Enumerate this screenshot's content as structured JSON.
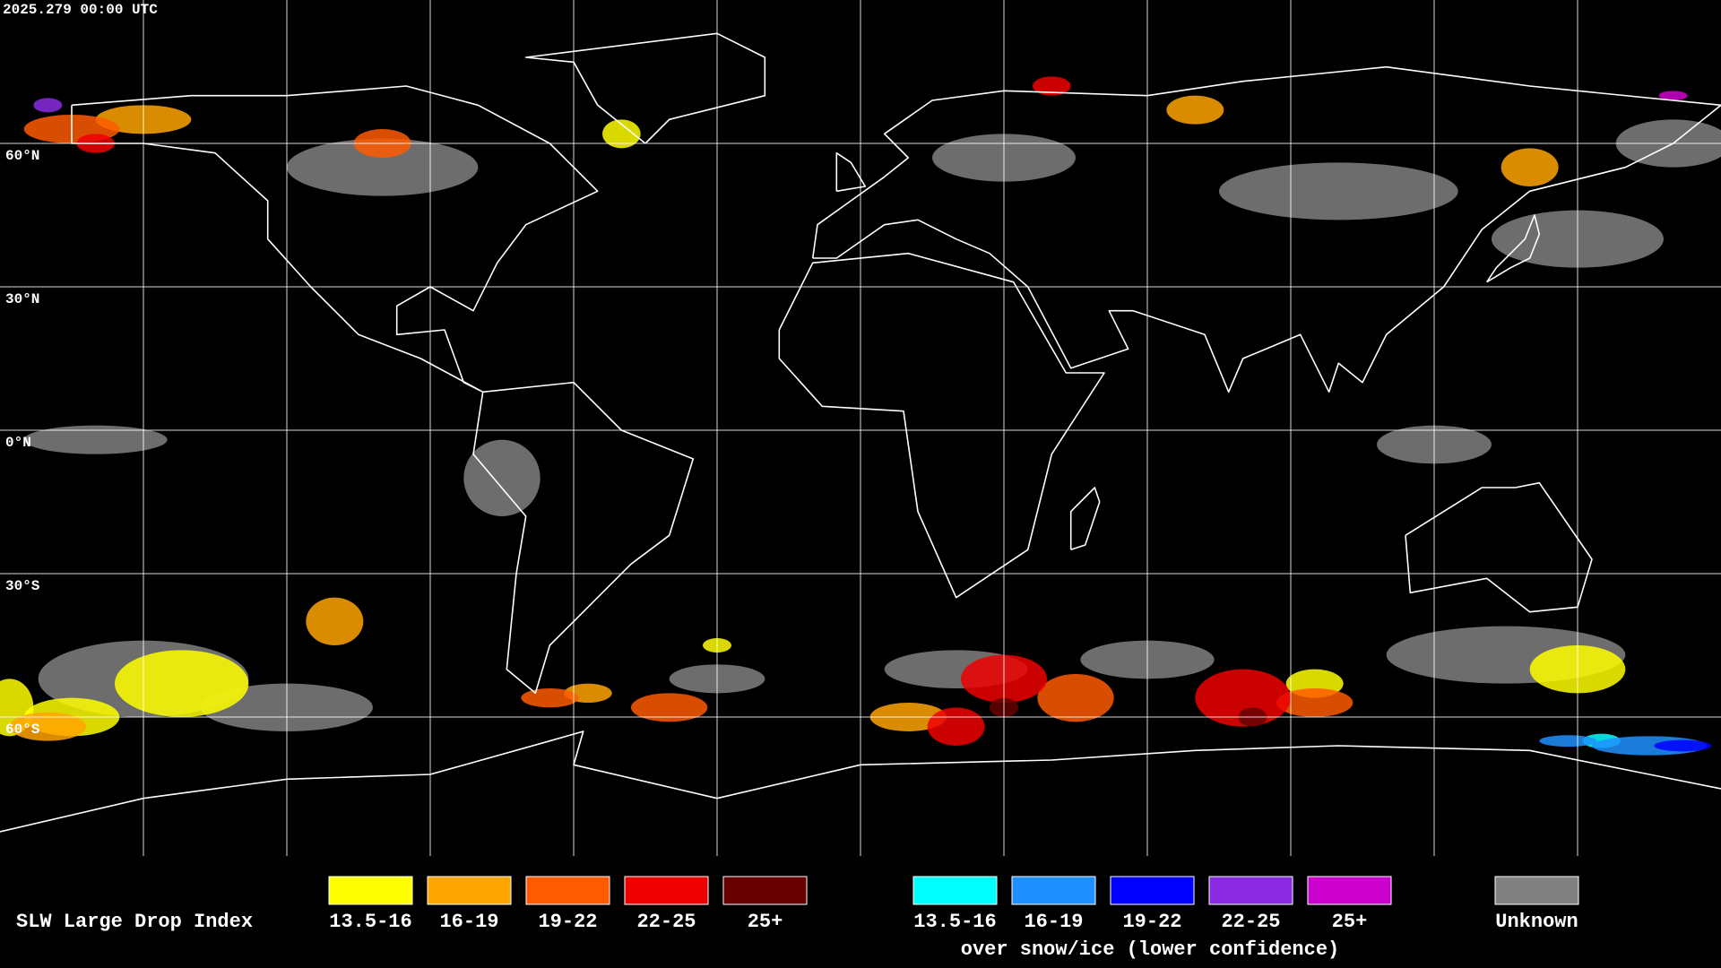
{
  "header": {
    "timestamp": "2025.279 00:00 UTC"
  },
  "grid": {
    "lat_labels": [
      {
        "lat": 60,
        "label": "60°N"
      },
      {
        "lat": 30,
        "label": "30°N"
      },
      {
        "lat": 0,
        "label": "0°N"
      },
      {
        "lat": -30,
        "label": "30°S"
      },
      {
        "lat": -60,
        "label": "60°S"
      }
    ]
  },
  "legend": {
    "title": "SLW Large Drop Index",
    "items": [
      {
        "label": "13.5-16",
        "color": "#ffff00"
      },
      {
        "label": "16-19",
        "color": "#ffa500"
      },
      {
        "label": "19-22",
        "color": "#ff5a00"
      },
      {
        "label": "22-25",
        "color": "#ee0000"
      },
      {
        "label": "25+",
        "color": "#660000"
      }
    ],
    "snow_items": [
      {
        "label": "13.5-16",
        "color": "#00ffff"
      },
      {
        "label": "16-19",
        "color": "#1e90ff"
      },
      {
        "label": "19-22",
        "color": "#0000ff"
      },
      {
        "label": "22-25",
        "color": "#8a2be2"
      },
      {
        "label": "25+",
        "color": "#cc00cc"
      }
    ],
    "snow_caption": "over snow/ice (lower confidence)",
    "unknown": {
      "label": "Unknown",
      "color": "#808080"
    }
  }
}
